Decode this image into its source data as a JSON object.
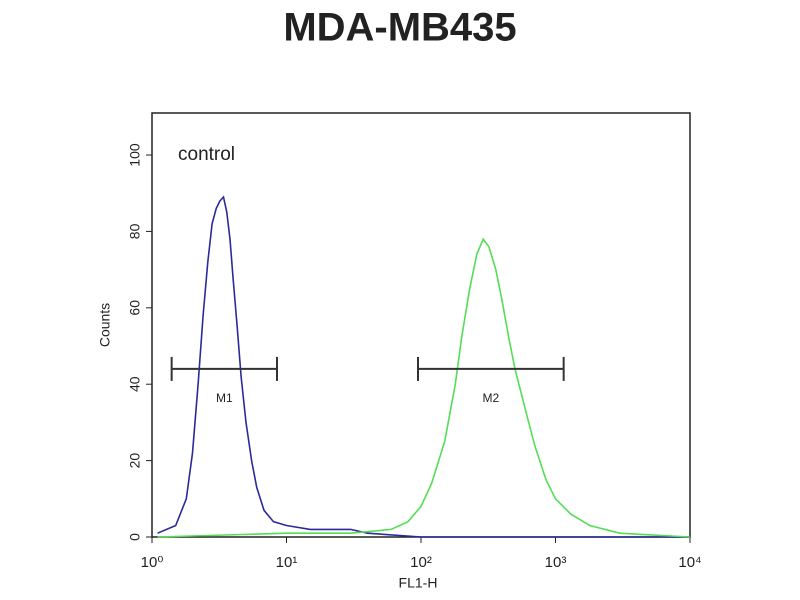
{
  "chart_data": {
    "type": "line",
    "title": "MDA-MB435",
    "xlabel": "FL1-H",
    "ylabel": "Counts",
    "annotation": "control",
    "xscale": "log",
    "xlim": [
      1,
      10000
    ],
    "ylim": [
      0,
      111
    ],
    "xticks": [
      {
        "value": 1,
        "label": "10⁰"
      },
      {
        "value": 10,
        "label": "10¹"
      },
      {
        "value": 100,
        "label": "10²"
      },
      {
        "value": 1000,
        "label": "10³"
      },
      {
        "value": 10000,
        "label": "10⁴"
      }
    ],
    "yticks": [
      0,
      20,
      40,
      60,
      80,
      100
    ],
    "series": [
      {
        "color": "#2a2a9a",
        "x": [
          1.1,
          1.5,
          1.8,
          2.0,
          2.2,
          2.4,
          2.6,
          2.8,
          3.0,
          3.2,
          3.4,
          3.6,
          3.8,
          4.0,
          4.3,
          4.6,
          5.0,
          5.5,
          6.0,
          6.8,
          8,
          10,
          15,
          30,
          40,
          100,
          1000,
          10000
        ],
        "values": [
          1,
          3,
          10,
          22,
          40,
          58,
          72,
          82,
          86,
          88,
          89,
          85,
          78,
          68,
          55,
          42,
          30,
          20,
          13,
          7,
          4,
          3,
          2,
          2,
          1,
          0,
          0,
          0
        ]
      },
      {
        "color": "#55dd55",
        "x": [
          1.1,
          10,
          30,
          60,
          80,
          100,
          120,
          150,
          180,
          200,
          230,
          260,
          290,
          320,
          360,
          400,
          450,
          500,
          600,
          700,
          850,
          1000,
          1300,
          1800,
          3000,
          10000
        ],
        "values": [
          0,
          1,
          1,
          2,
          4,
          8,
          14,
          25,
          40,
          52,
          65,
          74,
          78,
          76,
          70,
          62,
          52,
          44,
          33,
          24,
          15,
          10,
          6,
          3,
          1,
          0
        ]
      }
    ],
    "markers": [
      {
        "label": "M1",
        "range": [
          1.4,
          8.5
        ],
        "y": 44
      },
      {
        "label": "M2",
        "range": [
          95,
          1150
        ],
        "y": 44
      }
    ]
  }
}
